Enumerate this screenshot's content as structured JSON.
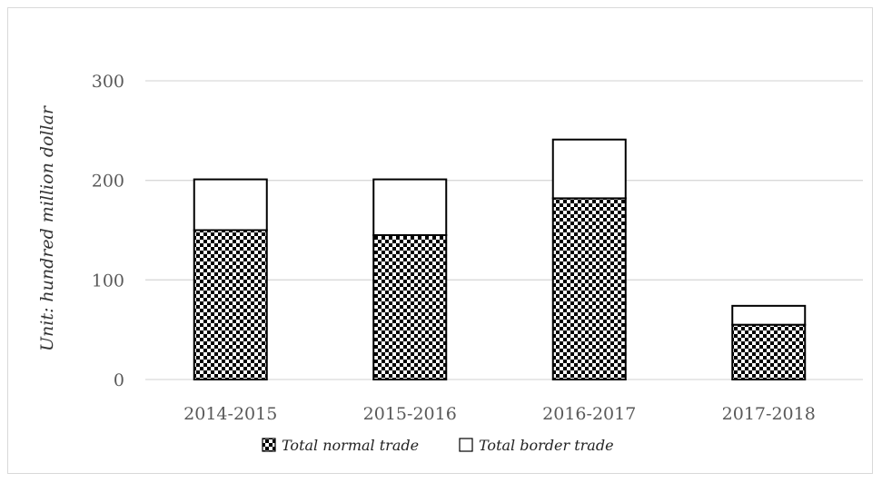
{
  "chart_data": {
    "type": "bar",
    "stacked": true,
    "categories": [
      "2014-2015",
      "2015-2016",
      "2016-2017",
      "2017-2018"
    ],
    "series": [
      {
        "name": "Total normal trade",
        "values": [
          150,
          145,
          182,
          55
        ],
        "pattern": "checkerboard"
      },
      {
        "name": "Total border trade",
        "values": [
          51,
          56,
          59,
          19
        ],
        "pattern": "none"
      }
    ],
    "ylabel": "Unit: hundred million dollar",
    "ylim": [
      0,
      300
    ],
    "yticks": [
      0,
      100,
      200,
      300
    ],
    "grid": true,
    "legend": "bottom",
    "colors": {
      "bar_outline": "#000000",
      "grid": "#d9d9d9",
      "tick_text": "#595959"
    }
  }
}
